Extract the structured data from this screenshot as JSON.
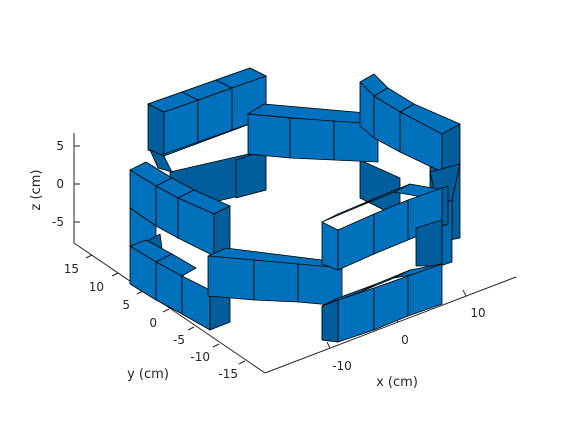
{
  "figure": {
    "type": "3d-box-plot",
    "colors": {
      "face": "#0072BD",
      "face_dark": "#005E9C",
      "face_mid": "#0068AE",
      "edge": "#000000",
      "axis": "#262626"
    },
    "axes": {
      "x": {
        "label": "x (cm)",
        "ticks": [
          "-10",
          "0",
          "10"
        ]
      },
      "y": {
        "label": "y (cm)",
        "ticks": [
          "15",
          "10",
          "5",
          "0",
          "-5",
          "-10",
          "-15"
        ]
      },
      "z": {
        "label": "z (cm)",
        "ticks": [
          "5",
          "0",
          "-5"
        ]
      }
    }
  }
}
